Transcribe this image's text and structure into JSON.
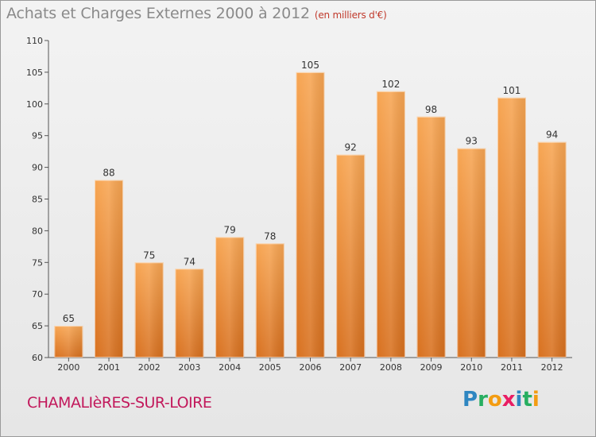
{
  "header": {
    "title": "Achats et Charges Externes 2000 à 2012",
    "unit": "(en milliers d'€)"
  },
  "footer": {
    "place": "CHAMALIèRES-SUR-LOIRE",
    "logo_letters": [
      "P",
      "r",
      "o",
      "x",
      "i",
      "t",
      "i"
    ],
    "logo_colors": [
      "#2e86c1",
      "#27ae60",
      "#f39c12",
      "#e91e63",
      "#2e86c1",
      "#27ae60",
      "#f39c12"
    ]
  },
  "chart_data": {
    "type": "bar",
    "title": "Achats et Charges Externes 2000 à 2012",
    "subtitle": "(en milliers d'€)",
    "categories": [
      "2000",
      "2001",
      "2002",
      "2003",
      "2004",
      "2005",
      "2006",
      "2007",
      "2008",
      "2009",
      "2010",
      "2011",
      "2012"
    ],
    "values": [
      65,
      88,
      75,
      74,
      79,
      78,
      105,
      92,
      102,
      98,
      93,
      101,
      94
    ],
    "ylim": [
      60,
      110
    ],
    "yticks": [
      60,
      65,
      70,
      75,
      80,
      85,
      90,
      95,
      100,
      105,
      110
    ],
    "xlabel": "",
    "ylabel": "",
    "grid": false,
    "bar_color": "#f0923a"
  }
}
